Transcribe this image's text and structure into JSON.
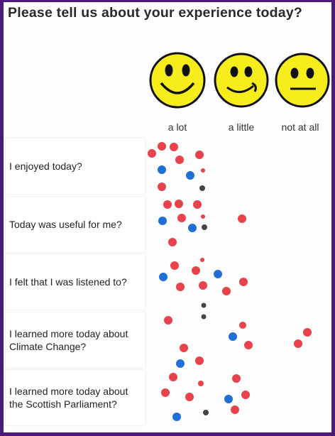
{
  "title": "Please tell us about your experience today?",
  "columns": [
    "a lot",
    "a little",
    "not at all"
  ],
  "rows": [
    "I enjoyed today?",
    "Today was useful for me?",
    "I felt that I was listened to?",
    "I learned more today about Climate Change?",
    "I learned more today about the Scottish Parliament?"
  ]
}
